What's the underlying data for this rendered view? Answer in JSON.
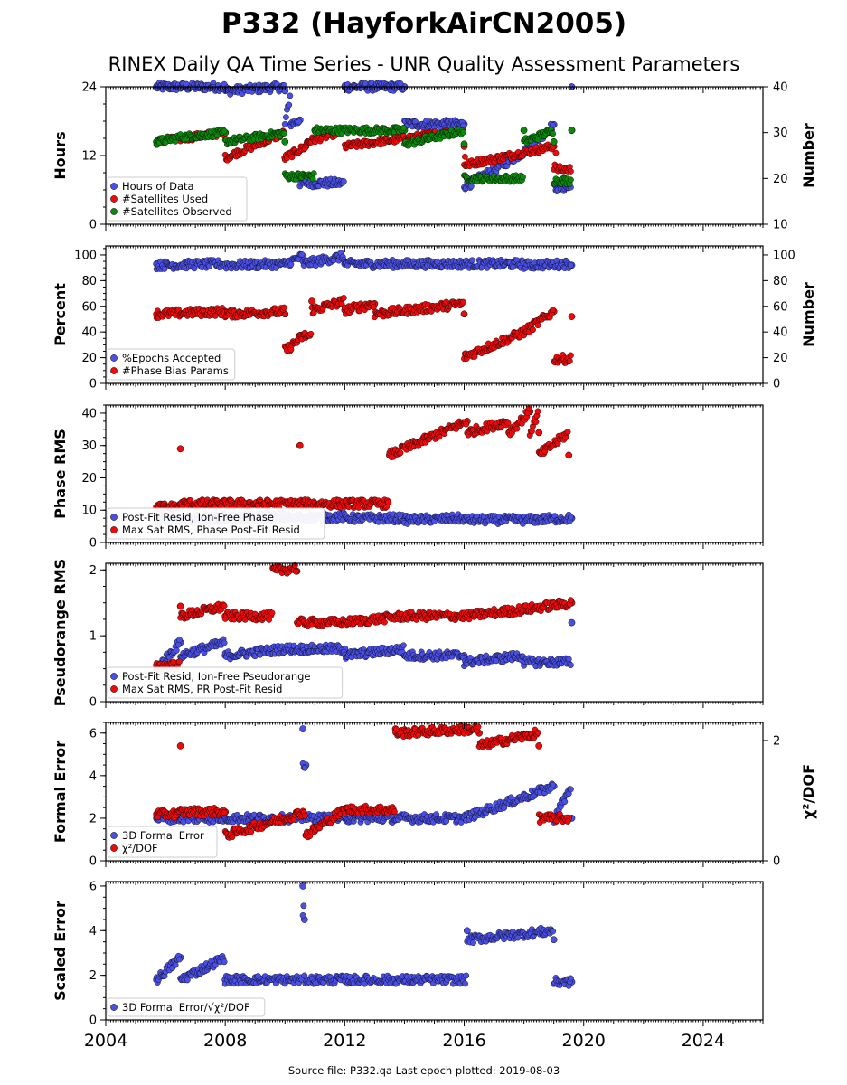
{
  "title": "P332 (HayforkAirCN2005)",
  "subtitle": "RINEX Daily QA Time Series - UNR Quality Assessment Parameters",
  "footer": "Source file: P332.qa Last epoch plotted: 2019-08-03",
  "colors": {
    "blue": "#4a4fe6",
    "red": "#ee0a0a",
    "green": "#0a8a0a",
    "edge": "#000000"
  },
  "chart_data": [
    {
      "type": "scatter",
      "xlim": [
        2004,
        2026
      ],
      "xticks": [
        "2004",
        "2008",
        "2012",
        "2016",
        "2020",
        "2024"
      ],
      "ylabel": "Hours",
      "ylim": [
        0,
        24
      ],
      "yticks": [
        "0",
        "12",
        "24"
      ],
      "y2label": "Number",
      "y2lim": [
        10,
        40
      ],
      "y2ticks": [
        "10",
        "20",
        "30",
        "40"
      ],
      "legend": "lower-left",
      "series": [
        {
          "name": "Hours of Data",
          "color": "blue",
          "axis": "left",
          "x": [
            2005.7,
            2008.0,
            2010.0,
            2010.2,
            2010.5,
            2010.8,
            2012.0,
            2014.0,
            2016.0,
            2016.1,
            2018.0,
            2019.0,
            2019.1,
            2019.6
          ],
          "y": [
            24,
            24,
            23.3,
            17.5,
            18.2,
            7.2,
            24,
            24,
            17.5,
            6.8,
            12.6,
            17.4,
            6.4,
            24
          ]
        },
        {
          "name": "#Satellites Used",
          "color": "red",
          "axis": "right",
          "x": [
            2005.7,
            2008.0,
            2010.0,
            2010.7,
            2010.75,
            2012.0,
            2016.0,
            2016.05,
            2019.0,
            2019.1,
            2019.6
          ],
          "y": [
            28,
            30,
            24.5,
            27,
            28,
            30.5,
            27,
            23,
            27,
            22,
            30.5
          ]
        },
        {
          "name": "#Satellites Observed",
          "color": "green",
          "axis": "right",
          "x": [
            2005.7,
            2006.5,
            2008.0,
            2010.0,
            2010.1,
            2011.0,
            2012.0,
            2014.0,
            2016.0,
            2016.1,
            2018.0,
            2019.0,
            2019.1,
            2019.6
          ],
          "y": [
            28,
            29,
            30,
            28,
            20.5,
            30.5,
            30.5,
            30.5,
            27.5,
            20,
            30.5,
            28,
            19.5,
            30.5
          ]
        }
      ]
    },
    {
      "type": "scatter",
      "xlim": [
        2004,
        2026
      ],
      "ylabel": "Percent",
      "ylim": [
        0,
        107
      ],
      "yticks": [
        "0",
        "20",
        "40",
        "60",
        "80",
        "100"
      ],
      "y2label": "Number",
      "y2ticks": [
        "0",
        "20",
        "40",
        "60",
        "80",
        "100"
      ],
      "legend": "lower-left",
      "series": [
        {
          "name": "%Epochs Accepted",
          "color": "blue",
          "axis": "left",
          "x": [
            2005.7,
            2008.0,
            2010.0,
            2010.6,
            2012.0,
            2014.0,
            2016.0,
            2018.0,
            2019.6
          ],
          "y": [
            93,
            92,
            93,
            99,
            93,
            93,
            93,
            93,
            92
          ]
        },
        {
          "name": "#Phase Bias Params",
          "color": "red",
          "axis": "right",
          "x": [
            2005.7,
            2008.0,
            2010.0,
            2010.1,
            2010.6,
            2010.9,
            2012.0,
            2013.0,
            2016.0,
            2016.05,
            2018.0,
            2019.0,
            2019.1,
            2019.6
          ],
          "y": [
            54,
            56,
            54,
            27,
            37,
            64,
            57,
            62,
            54,
            21,
            40,
            56,
            19,
            52
          ]
        }
      ]
    },
    {
      "type": "scatter",
      "xlim": [
        2004,
        2026
      ],
      "ylabel": "Phase RMS",
      "ylim": [
        0,
        42.5
      ],
      "yticks": [
        "0",
        "10",
        "20",
        "30",
        "40"
      ],
      "legend": "lower-left",
      "series": [
        {
          "name": "Post-Fit Resid, Ion-Free Phase",
          "color": "blue",
          "axis": "left",
          "x": [
            2005.7,
            2008.0,
            2010.0,
            2012.0,
            2014.0,
            2016.0,
            2018.0,
            2019.6
          ],
          "y": [
            7,
            7.5,
            8,
            7.5,
            7.5,
            7,
            7,
            7.5
          ]
        },
        {
          "name": "Max Sat RMS, Phase Post-Fit Resid",
          "color": "red",
          "axis": "left",
          "x": [
            2005.7,
            2006.5,
            2008.0,
            2010.5,
            2012.0,
            2013.5,
            2016.1,
            2017.5,
            2018.2,
            2018.5,
            2019.5
          ],
          "y": [
            11,
            29,
            12,
            30,
            12,
            27,
            37.5,
            34,
            40.5,
            34,
            27
          ]
        }
      ]
    },
    {
      "type": "scatter",
      "xlim": [
        2004,
        2026
      ],
      "ylabel": "Pseudorange RMS",
      "ylim": [
        0,
        2.1
      ],
      "yticks": [
        "0",
        "1",
        "2"
      ],
      "legend": "lower-left",
      "series": [
        {
          "name": "Post-Fit Resid, Ion-Free Pseudorange",
          "color": "blue",
          "axis": "left",
          "x": [
            2005.7,
            2006.5,
            2008.0,
            2010.0,
            2012.0,
            2014.0,
            2016.0,
            2018.0,
            2019.6
          ],
          "y": [
            0.5,
            0.9,
            0.7,
            0.8,
            0.8,
            0.7,
            0.7,
            0.6,
            1.2
          ]
        },
        {
          "name": "Max Sat RMS, PR Post-Fit Resid",
          "color": "red",
          "axis": "left",
          "x": [
            2005.7,
            2006.5,
            2008.0,
            2009.6,
            2010.4,
            2012.0,
            2014.0,
            2016.0,
            2018.0,
            2019.6
          ],
          "y": [
            0.55,
            1.45,
            1.3,
            2.03,
            1.98,
            1.2,
            1.3,
            1.3,
            1.4,
            1.5
          ]
        }
      ]
    },
    {
      "type": "scatter",
      "xlim": [
        2004,
        2026
      ],
      "ylabel": "Formal Error",
      "ylim": [
        0,
        6.5
      ],
      "yticks": [
        "0",
        "2",
        "4",
        "6"
      ],
      "y2label": "χ²/DOF",
      "y2ticks": [
        "0",
        "2"
      ],
      "legend": "lower-left",
      "series": [
        {
          "name": "3D Formal Error",
          "color": "blue",
          "axis": "left",
          "x": [
            2005.7,
            2008.0,
            2010.6,
            2010.7,
            2012.0,
            2016.0,
            2019.0,
            2019.6
          ],
          "y": [
            2,
            2,
            6.2,
            4.5,
            2,
            2,
            3.5,
            2
          ]
        },
        {
          "name": "χ²/DOF",
          "color": "red",
          "axis": "left",
          "x": [
            2005.7,
            2006.5,
            2008.0,
            2010.7,
            2012.0,
            2013.7,
            2016.5,
            2018.5,
            2019.5
          ],
          "y": [
            2.2,
            5.4,
            2.3,
            1.2,
            2.4,
            6.2,
            6.0,
            5.4,
            2.0
          ]
        }
      ]
    },
    {
      "type": "scatter",
      "xlim": [
        2004,
        2026
      ],
      "xticks": [
        "2004",
        "2008",
        "2012",
        "2016",
        "2020",
        "2024"
      ],
      "ylabel": "Scaled Error",
      "ylim": [
        0,
        6.2
      ],
      "yticks": [
        "0",
        "2",
        "4",
        "6"
      ],
      "legend": "lower-left",
      "series": [
        {
          "name": "3D Formal Error/√χ²/DOF",
          "color": "blue",
          "axis": "left",
          "x": [
            2005.7,
            2006.5,
            2008.0,
            2010.6,
            2010.65,
            2012.0,
            2016.1,
            2019.0,
            2019.6
          ],
          "y": [
            1.8,
            2.8,
            1.8,
            6.0,
            4.5,
            1.8,
            4.0,
            3.6,
            1.7
          ]
        }
      ]
    }
  ]
}
